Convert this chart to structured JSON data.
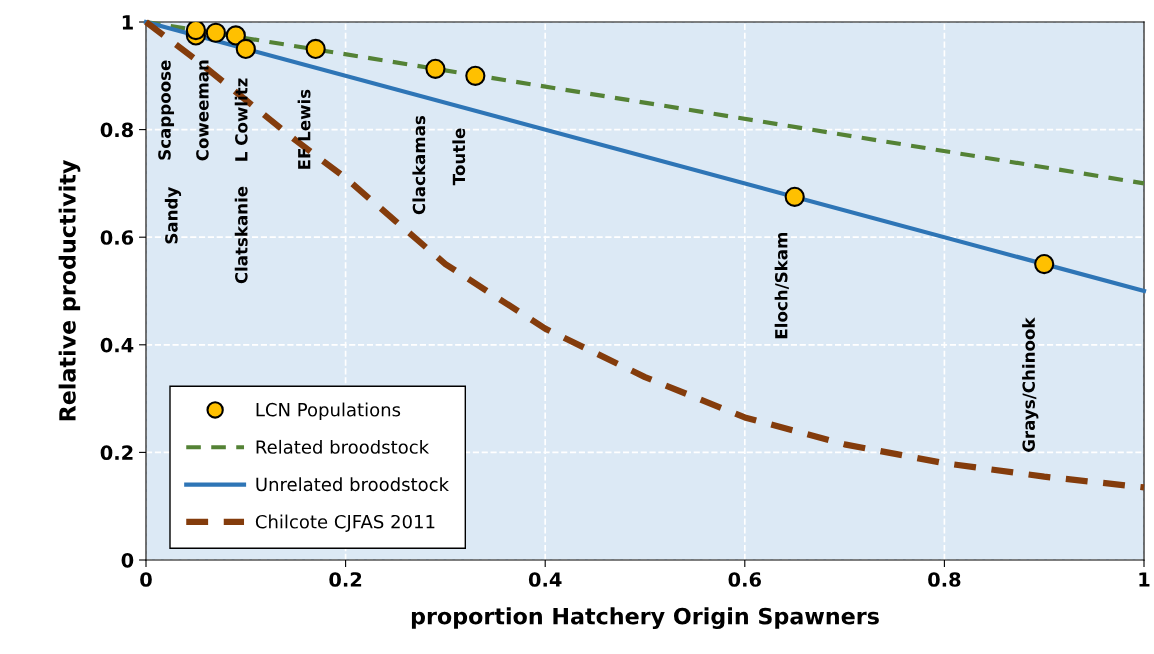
{
  "chart_data": {
    "type": "line",
    "xlabel": "proportion Hatchery Origin Spawners",
    "ylabel": "Relative productivity",
    "xlim": [
      0,
      1
    ],
    "ylim": [
      0,
      1
    ],
    "xticks": [
      0,
      0.2,
      0.4,
      0.6,
      0.8,
      1
    ],
    "yticks": [
      0,
      0.2,
      0.4,
      0.6,
      0.8,
      1
    ],
    "grid": true,
    "legend": "bottom left",
    "series": [
      {
        "name": "LCN Populations",
        "type": "scatter",
        "marker": "circle",
        "color": "#ffc000",
        "x": [
          0.05,
          0.05,
          0.07,
          0.09,
          0.1,
          0.17,
          0.29,
          0.33,
          0.65,
          0.9
        ],
        "values": [
          0.975,
          0.985,
          0.98,
          0.975,
          0.95,
          0.95,
          0.913,
          0.9,
          0.675,
          0.55
        ]
      },
      {
        "name": "Related broodstock",
        "line_style": "dashed",
        "color": "#548235",
        "x": [
          0,
          1
        ],
        "values": [
          1,
          0.7
        ]
      },
      {
        "name": "Unrelated broodstock",
        "line_style": "solid",
        "color": "#2e75b6",
        "x": [
          0,
          1
        ],
        "values": [
          1,
          0.5
        ]
      },
      {
        "name": "Chilcote CJFAS 2011",
        "line_style": "dashed",
        "color": "#843c0c",
        "x": [
          0,
          0.05,
          0.1,
          0.15,
          0.2,
          0.25,
          0.3,
          0.35,
          0.4,
          0.5,
          0.6,
          0.7,
          0.8,
          0.9,
          1
        ],
        "values": [
          1,
          0.93,
          0.855,
          0.78,
          0.71,
          0.63,
          0.55,
          0.49,
          0.43,
          0.34,
          0.265,
          0.215,
          0.18,
          0.155,
          0.135
        ]
      }
    ],
    "annotations": [
      "Scappoose",
      "Sandy",
      "Coweeman",
      "L Cowlitz",
      "Clatskanie",
      "EF Lewis",
      "Clackamas",
      "Toutle",
      "Eloch/Skam",
      "Grays/Chinook"
    ]
  }
}
